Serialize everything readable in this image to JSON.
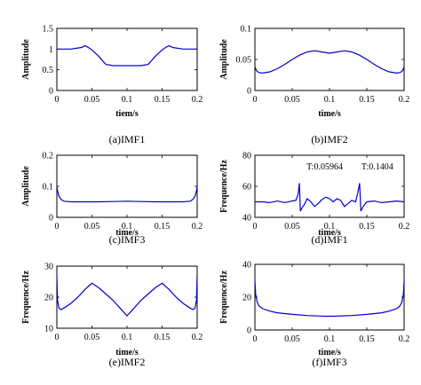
{
  "chart_data": [
    {
      "id": "a",
      "type": "line",
      "caption": "(a)IMF1",
      "xlabel": "tiem/s",
      "ylabel": "Amplitude",
      "xlim": [
        0,
        0.2
      ],
      "ylim": [
        0,
        1.5
      ],
      "xticks": [
        "0",
        "0.05",
        "0.1",
        "0.15",
        "0.2"
      ],
      "yticks": [
        "0",
        "0.5",
        "1",
        "1.5"
      ],
      "series": [
        {
          "color": "#0000cc",
          "x": [
            0,
            0.02,
            0.035,
            0.04,
            0.045,
            0.05,
            0.06,
            0.065,
            0.07,
            0.08,
            0.1,
            0.12,
            0.13,
            0.135,
            0.14,
            0.15,
            0.155,
            0.16,
            0.165,
            0.18,
            0.2
          ],
          "y": [
            1.0,
            1.0,
            1.04,
            1.08,
            1.04,
            0.98,
            0.82,
            0.72,
            0.63,
            0.6,
            0.6,
            0.6,
            0.63,
            0.72,
            0.82,
            0.98,
            1.04,
            1.08,
            1.04,
            1.0,
            1.0
          ]
        }
      ]
    },
    {
      "id": "b",
      "type": "line",
      "caption": "(b)IMF2",
      "xlabel": "time/s",
      "ylabel": "Amplitude",
      "xlim": [
        0,
        0.2
      ],
      "ylim": [
        0,
        0.1
      ],
      "xticks": [
        "0",
        "0.05",
        "0.1",
        "0.15",
        "0.2"
      ],
      "yticks": [
        "0",
        "0.05",
        "0.1"
      ],
      "series": [
        {
          "color": "#0000cc",
          "x": [
            0,
            0.002,
            0.005,
            0.01,
            0.02,
            0.03,
            0.04,
            0.05,
            0.06,
            0.07,
            0.08,
            0.09,
            0.1,
            0.11,
            0.12,
            0.13,
            0.14,
            0.15,
            0.16,
            0.17,
            0.18,
            0.19,
            0.195,
            0.198,
            0.2
          ],
          "y": [
            0.038,
            0.032,
            0.029,
            0.028,
            0.03,
            0.035,
            0.042,
            0.05,
            0.057,
            0.062,
            0.064,
            0.062,
            0.06,
            0.062,
            0.064,
            0.062,
            0.057,
            0.05,
            0.042,
            0.035,
            0.03,
            0.028,
            0.029,
            0.032,
            0.038
          ]
        }
      ]
    },
    {
      "id": "c",
      "type": "line",
      "caption": "(c)IMF3",
      "xlabel": "time/s",
      "ylabel": "Amplitude",
      "xlim": [
        0,
        0.2
      ],
      "ylim": [
        0,
        0.2
      ],
      "xticks": [
        "0",
        "0.05",
        "0.1",
        "0.15",
        "0.2"
      ],
      "yticks": [
        "0",
        "0.1",
        "0.2"
      ],
      "series": [
        {
          "color": "#0000cc",
          "x": [
            0,
            0.001,
            0.003,
            0.006,
            0.01,
            0.02,
            0.04,
            0.06,
            0.08,
            0.1,
            0.12,
            0.14,
            0.16,
            0.18,
            0.19,
            0.194,
            0.197,
            0.199,
            0.2
          ],
          "y": [
            0.1,
            0.085,
            0.068,
            0.058,
            0.052,
            0.05,
            0.05,
            0.05,
            0.051,
            0.052,
            0.051,
            0.05,
            0.05,
            0.05,
            0.052,
            0.058,
            0.068,
            0.085,
            0.1
          ]
        }
      ]
    },
    {
      "id": "d",
      "type": "line",
      "caption": "(d)IMF1",
      "xlabel": "time/s",
      "ylabel": "Frequence/Hz",
      "xlim": [
        0,
        0.2
      ],
      "ylim": [
        40,
        80
      ],
      "xticks": [
        "0",
        "0.05",
        "0.1",
        "0.15",
        "0.2"
      ],
      "yticks": [
        "40",
        "60",
        "80"
      ],
      "annotations": [
        "T:0.05964",
        "T:0.1404"
      ],
      "series": [
        {
          "color": "#0000cc",
          "x": [
            0,
            0.01,
            0.02,
            0.03,
            0.04,
            0.05,
            0.055,
            0.058,
            0.0596,
            0.061,
            0.063,
            0.066,
            0.07,
            0.075,
            0.08,
            0.085,
            0.09,
            0.095,
            0.1,
            0.105,
            0.11,
            0.115,
            0.12,
            0.125,
            0.13,
            0.135,
            0.138,
            0.1404,
            0.142,
            0.145,
            0.15,
            0.16,
            0.17,
            0.18,
            0.19,
            0.2
          ],
          "y": [
            50,
            50,
            49.5,
            50.5,
            49.5,
            50.5,
            51,
            55,
            62,
            44,
            46,
            48,
            52,
            50,
            47,
            49,
            51.5,
            53,
            52,
            50,
            52,
            51,
            47,
            49,
            51,
            50,
            56,
            62,
            44,
            47,
            50,
            50.5,
            49.5,
            50,
            50.5,
            50
          ]
        }
      ]
    },
    {
      "id": "e",
      "type": "line",
      "caption": "(e)IMF2",
      "xlabel": "time/s",
      "ylabel": "Frequence/Hz",
      "xlim": [
        0,
        0.2
      ],
      "ylim": [
        10,
        30
      ],
      "xticks": [
        "0",
        "0.05",
        "0.1",
        "0.15",
        "0.2"
      ],
      "yticks": [
        "10",
        "20",
        "30"
      ],
      "series": [
        {
          "color": "#0000cc",
          "x": [
            0,
            0.001,
            0.003,
            0.006,
            0.01,
            0.02,
            0.03,
            0.04,
            0.05,
            0.06,
            0.07,
            0.08,
            0.09,
            0.1,
            0.11,
            0.12,
            0.13,
            0.14,
            0.15,
            0.16,
            0.17,
            0.18,
            0.19,
            0.194,
            0.197,
            0.199,
            0.2
          ],
          "y": [
            27,
            19,
            16.5,
            16,
            16.5,
            18,
            20,
            22.5,
            24.5,
            23,
            21,
            19,
            16.5,
            14,
            16.5,
            19,
            21,
            23,
            24.5,
            22.5,
            20,
            18,
            16.5,
            16,
            16.5,
            19,
            27
          ]
        }
      ]
    },
    {
      "id": "f",
      "type": "line",
      "caption": "(f)IMF3",
      "xlabel": "time/s",
      "ylabel": "Frequence/Hz",
      "xlim": [
        0,
        0.2
      ],
      "ylim": [
        0,
        40
      ],
      "xticks": [
        "0",
        "0.05",
        "0.1",
        "0.15",
        "0.2"
      ],
      "yticks": [
        "0",
        "20",
        "40"
      ],
      "series": [
        {
          "color": "#0000cc",
          "x": [
            0,
            0.001,
            0.003,
            0.006,
            0.01,
            0.02,
            0.03,
            0.05,
            0.07,
            0.09,
            0.1,
            0.11,
            0.13,
            0.15,
            0.17,
            0.18,
            0.19,
            0.194,
            0.197,
            0.199,
            0.2
          ],
          "y": [
            30,
            22,
            17,
            14.5,
            13,
            11.5,
            10.5,
            9.5,
            8.8,
            8.5,
            8.4,
            8.5,
            8.8,
            9.5,
            10.5,
            11.5,
            13,
            14.5,
            17,
            22,
            30
          ]
        }
      ]
    }
  ]
}
